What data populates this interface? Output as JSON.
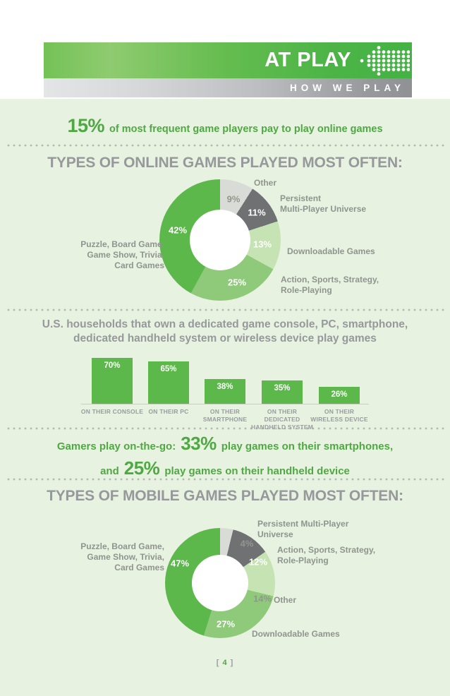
{
  "header": {
    "title": "AT PLAY",
    "subtitle": "HOW WE PLAY",
    "icon": "dotted-arrow-icon"
  },
  "intro": {
    "stat": "15%",
    "text": "of most frequent game players pay to play online games"
  },
  "on_the_go": {
    "line1_prefix": "Gamers play on-the-go:",
    "line1_stat": "33%",
    "line1_suffix": "play games on their smartphones,",
    "line2_prefix": "and",
    "line2_stat": "25%",
    "line2_suffix": "play games on their handheld device"
  },
  "footer": {
    "bracket_open": "[",
    "page_number": "4",
    "bracket_close": "]"
  },
  "colors": {
    "content_bg": "#e8f2e0",
    "green_main": "#5cb84b",
    "green_medium": "#8fca7b",
    "green_light": "#c6e3b4",
    "gray_light": "#d9dcd6",
    "gray_dark": "#6f7173",
    "green_text": "#4fa844",
    "heading_gray": "#96989b",
    "label_gray": "#8f948f"
  },
  "chart_data": [
    {
      "type": "pie",
      "style": "donut",
      "title": "TYPES OF ONLINE GAMES PLAYED MOST OFTEN:",
      "slices": [
        {
          "label": "Other",
          "label_lines": [
            "Other"
          ],
          "value": 9,
          "pct": "9%",
          "color": "#d9dcd6",
          "pct_color": "#91968f"
        },
        {
          "label": "Persistent Multi-Player Universe",
          "label_lines": [
            "Persistent",
            "Multi-Player Universe"
          ],
          "value": 11,
          "pct": "11%",
          "color": "#6f7173",
          "pct_color": "#ffffff"
        },
        {
          "label": "Downloadable Games",
          "label_lines": [
            "Downloadable Games"
          ],
          "value": 13,
          "pct": "13%",
          "color": "#c6e3b4",
          "pct_color": "#ffffff"
        },
        {
          "label": "Action, Sports, Strategy, Role-Playing",
          "label_lines": [
            "Action, Sports, Strategy,",
            "Role-Playing"
          ],
          "value": 25,
          "pct": "25%",
          "color": "#8fca7b",
          "pct_color": "#ffffff"
        },
        {
          "label": "Puzzle, Board Game, Game Show, Trivia, Card Games",
          "label_lines": [
            "Puzzle, Board Game,",
            "Game Show, Trivia,",
            "Card Games"
          ],
          "value": 42,
          "pct": "42%",
          "color": "#5cb84b",
          "pct_color": "#ffffff"
        }
      ]
    },
    {
      "type": "bar",
      "title_line1": "U.S. households that own a dedicated game console, PC, smartphone,",
      "title_line2": "dedicated handheld system or wireless device play games",
      "bar_color": "#5cb84b",
      "ylim": [
        0,
        75
      ],
      "bars": [
        {
          "label": "ON THEIR CONSOLE",
          "label_lines": [
            "ON THEIR CONSOLE"
          ],
          "value": 70,
          "pct": "70%"
        },
        {
          "label": "ON THEIR PC",
          "label_lines": [
            "ON THEIR PC"
          ],
          "value": 65,
          "pct": "65%"
        },
        {
          "label": "ON THEIR SMARTPHONE",
          "label_lines": [
            "ON THEIR",
            "SMARTPHONE"
          ],
          "value": 38,
          "pct": "38%"
        },
        {
          "label": "ON THEIR DEDICATED HANDHELD SYSTEM",
          "label_lines": [
            "ON THEIR DEDICATED",
            "HANDHELD SYSTEM"
          ],
          "value": 35,
          "pct": "35%"
        },
        {
          "label": "ON THEIR WIRELESS DEVICE",
          "label_lines": [
            "ON THEIR",
            "WIRELESS  DEVICE"
          ],
          "value": 26,
          "pct": "26%"
        }
      ]
    },
    {
      "type": "pie",
      "style": "donut",
      "title": "TYPES OF MOBILE GAMES PLAYED MOST OFTEN:",
      "slices": [
        {
          "label": "Persistent Multi-Player Universe",
          "label_lines": [
            "Persistent Multi-Player",
            "Universe"
          ],
          "value": 4,
          "pct": "4%",
          "color": "#d9dcd6",
          "pct_color": "#91968f"
        },
        {
          "label": "Action, Sports, Strategy, Role-Playing",
          "label_lines": [
            "Action, Sports, Strategy,",
            "Role-Playing"
          ],
          "value": 12,
          "pct": "12%",
          "color": "#6f7173",
          "pct_color": "#ffffff"
        },
        {
          "label": "Other",
          "label_lines": [
            "Other"
          ],
          "value": 14,
          "pct": "14%",
          "color": "#c6e3b4",
          "pct_color": "#91968f"
        },
        {
          "label": "Downloadable Games",
          "label_lines": [
            "Downloadable Games"
          ],
          "value": 27,
          "pct": "27%",
          "color": "#8fca7b",
          "pct_color": "#ffffff"
        },
        {
          "label": "Puzzle, Board Game, Game Show, Trivia, Card Games",
          "label_lines": [
            "Puzzle, Board Game,",
            "Game Show, Trivia,",
            "Card Games"
          ],
          "value": 47,
          "pct": "47%",
          "color": "#5cb84b",
          "pct_color": "#ffffff"
        }
      ]
    }
  ]
}
